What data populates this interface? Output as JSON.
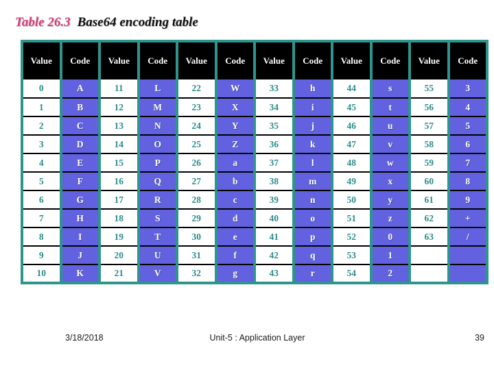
{
  "title": {
    "label": "Table 26.3",
    "text": "Base64 encoding table"
  },
  "table": {
    "column_headers": [
      "Value",
      "Code",
      "Value",
      "Code",
      "Value",
      "Code",
      "Value",
      "Code",
      "Value",
      "Code",
      "Value",
      "Code"
    ],
    "rows": [
      [
        "0",
        "A",
        "11",
        "L",
        "22",
        "W",
        "33",
        "h",
        "44",
        "s",
        "55",
        "3"
      ],
      [
        "1",
        "B",
        "12",
        "M",
        "23",
        "X",
        "34",
        "i",
        "45",
        "t",
        "56",
        "4"
      ],
      [
        "2",
        "C",
        "13",
        "N",
        "24",
        "Y",
        "35",
        "j",
        "46",
        "u",
        "57",
        "5"
      ],
      [
        "3",
        "D",
        "14",
        "O",
        "25",
        "Z",
        "36",
        "k",
        "47",
        "v",
        "58",
        "6"
      ],
      [
        "4",
        "E",
        "15",
        "P",
        "26",
        "a",
        "37",
        "l",
        "48",
        "w",
        "59",
        "7"
      ],
      [
        "5",
        "F",
        "16",
        "Q",
        "27",
        "b",
        "38",
        "m",
        "49",
        "x",
        "60",
        "8"
      ],
      [
        "6",
        "G",
        "17",
        "R",
        "28",
        "c",
        "39",
        "n",
        "50",
        "y",
        "61",
        "9"
      ],
      [
        "7",
        "H",
        "18",
        "S",
        "29",
        "d",
        "40",
        "o",
        "51",
        "z",
        "62",
        "+"
      ],
      [
        "8",
        "I",
        "19",
        "T",
        "30",
        "e",
        "41",
        "p",
        "52",
        "0",
        "63",
        "/"
      ],
      [
        "9",
        "J",
        "20",
        "U",
        "31",
        "f",
        "42",
        "q",
        "53",
        "1",
        "",
        ""
      ],
      [
        "10",
        "K",
        "21",
        "V",
        "32",
        "g",
        "43",
        "r",
        "54",
        "2",
        "",
        ""
      ]
    ]
  },
  "footer": {
    "date": "3/18/2018",
    "center_text": "Unit-5 : Application Layer",
    "page_number": "39"
  },
  "colors": {
    "title_pink": "#d63b78",
    "border_teal": "#2d958d",
    "value_text_teal": "#2d8c8c",
    "code_cell_blue": "#6262e0",
    "header_black": "#000000"
  }
}
